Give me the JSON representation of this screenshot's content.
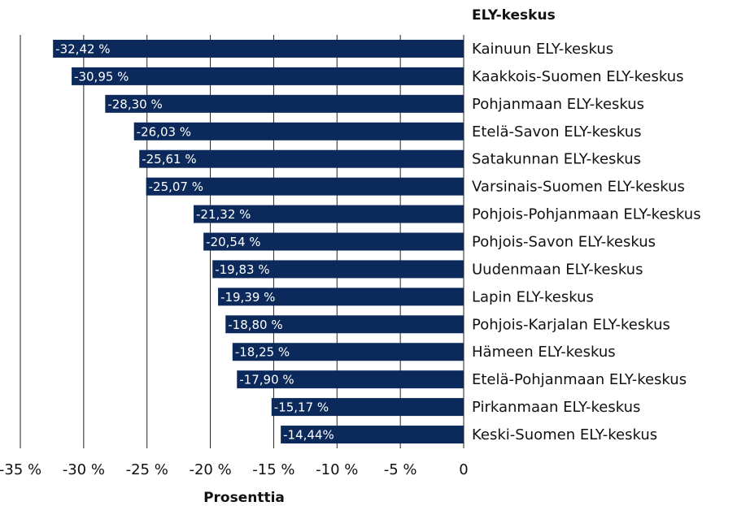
{
  "chart_data": {
    "type": "bar",
    "orientation": "horizontal",
    "y_axis_label": "ELY-keskus",
    "x_axis_label": "Prosenttia",
    "categories": [
      "Kainuun ELY-keskus",
      "Kaakkois-Suomen ELY-keskus",
      "Pohjanmaan ELY-keskus",
      "Etelä-Savon ELY-keskus",
      "Satakunnan ELY-keskus",
      "Varsinais-Suomen ELY-keskus",
      "Pohjois-Pohjanmaan ELY-keskus",
      "Pohjois-Savon ELY-keskus",
      "Uudenmaan ELY-keskus",
      "Lapin ELY-keskus",
      "Pohjois-Karjalan ELY-keskus",
      "Hämeen ELY-keskus",
      "Etelä-Pohjanmaan ELY-keskus",
      "Pirkanmaan ELY-keskus",
      "Keski-Suomen ELY-keskus"
    ],
    "values": [
      -32.42,
      -30.95,
      -28.3,
      -26.03,
      -25.61,
      -25.07,
      -21.32,
      -20.54,
      -19.83,
      -19.39,
      -18.8,
      -18.25,
      -17.9,
      -15.17,
      -14.44
    ],
    "value_labels": [
      "-32,42 %",
      "-30,95 %",
      "-28,30 %",
      "-26,03 %",
      "-25,61 %",
      "-25,07 %",
      "-21,32 %",
      "-20,54 %",
      "-19,83 %",
      "-19,39 %",
      "-18,80 %",
      "-18,25 %",
      "-17,90 %",
      "-15,17 %",
      "-14,44%"
    ],
    "color": "#0b2a5b",
    "xlim": [
      -35,
      0
    ],
    "xticks": [
      {
        "value": -35,
        "label": "-35 %"
      },
      {
        "value": -30,
        "label": "-30 %"
      },
      {
        "value": -25,
        "label": "-25 %"
      },
      {
        "value": -20,
        "label": "-20 %"
      },
      {
        "value": -15,
        "label": "-15 %"
      },
      {
        "value": -10,
        "label": "-10 %"
      },
      {
        "value": -5,
        "label": "-5 %"
      },
      0
    ],
    "grid": true
  }
}
